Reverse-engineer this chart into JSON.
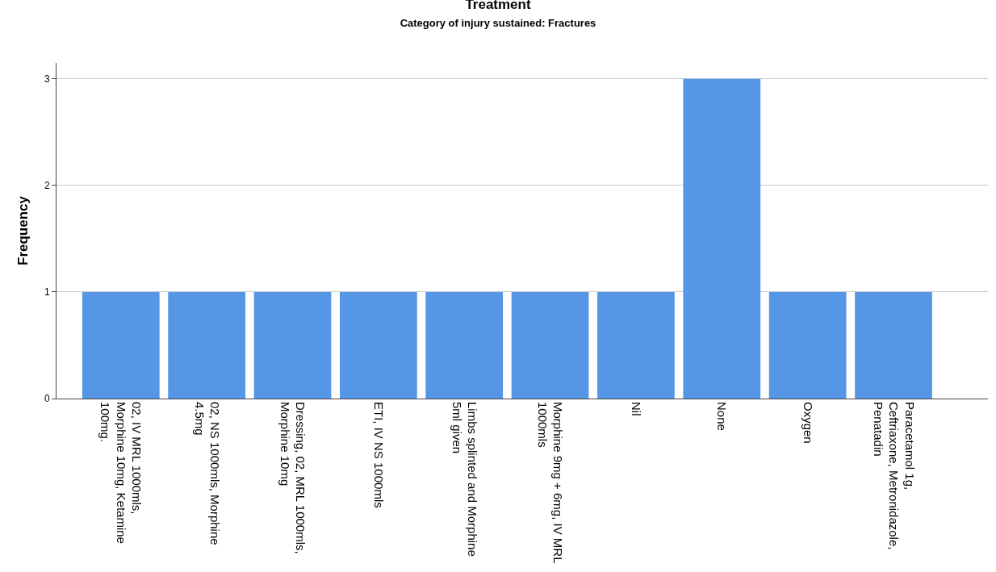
{
  "chart_data": {
    "type": "bar",
    "title": "Treatment",
    "subtitle": "Category of injury sustained: Fractures",
    "ylabel": "Frequency",
    "categories": [
      "02, IV MRL 1000mls, Morphine 10mg, Ketamine 100mg.",
      "02, NS 1000mls, Morphine 4.5mg",
      "Dressing, 02, MRL 1000mls, Morphine 10mg",
      "ETI, IV NS 1000mls",
      "Limbs splinted and Morphine 5ml given",
      "Morphine 9mg + 6mg, IV MRL 1000mls",
      "Nil",
      "None",
      "Oxygen",
      "Paracetamol 1g, Ceftriaxone, Metronidazole, Penatadin"
    ],
    "values": [
      1,
      1,
      1,
      1,
      1,
      1,
      1,
      3,
      1,
      1
    ],
    "color": "#5596e6",
    "ylim": [
      0,
      3.15
    ],
    "yticks": [
      0,
      1,
      2,
      3
    ],
    "grid": "y",
    "legend": false
  }
}
